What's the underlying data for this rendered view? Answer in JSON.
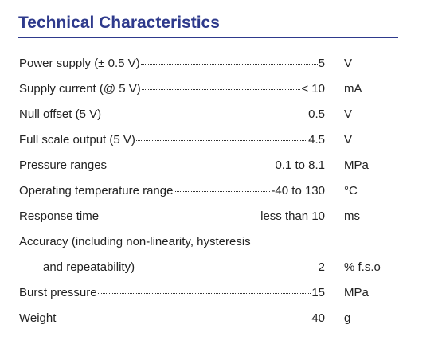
{
  "title": "Technical Characteristics",
  "rows": [
    {
      "label": "Power supply (± 0.5 V)",
      "value": "5",
      "unit": "V"
    },
    {
      "label": "Supply current (@ 5 V)",
      "value": "< 10",
      "unit": "mA"
    },
    {
      "label": "Null offset (5 V)",
      "value": "0.5",
      "unit": "V"
    },
    {
      "label": "Full scale output (5 V)",
      "value": "4.5",
      "unit": "V"
    },
    {
      "label": "Pressure ranges",
      "value": "0.1 to 8.1",
      "unit": "MPa"
    },
    {
      "label": "Operating temperature range",
      "value": "-40 to 130",
      "unit": "°C"
    },
    {
      "label": "Response time",
      "value": "less than 10",
      "unit": "ms"
    },
    {
      "label": "Accuracy (including non-linearity, hysteresis",
      "continuation": "and repeatability)",
      "value": "2",
      "unit": "% f.s.o"
    },
    {
      "label": "Burst pressure",
      "value": "15",
      "unit": "MPa"
    },
    {
      "label": "Weight",
      "value": "40",
      "unit": "g"
    }
  ]
}
